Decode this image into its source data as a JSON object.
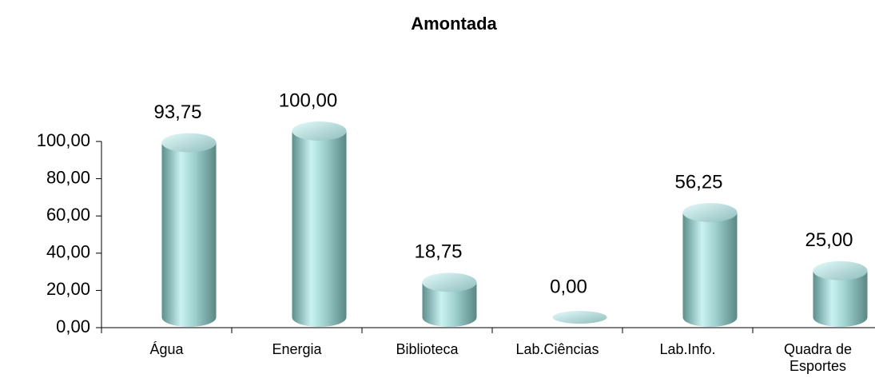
{
  "chart_data": {
    "type": "bar3d-cylinder",
    "title": "Amontada",
    "categories": [
      "Água",
      "Energia",
      "Biblioteca",
      "Lab.Ciências",
      "Lab.Info.",
      "Quadra de Esportes"
    ],
    "values": [
      93.75,
      100,
      18.75,
      0,
      56.25,
      25
    ],
    "value_labels": [
      "93,75",
      "100,00",
      "18,75",
      "0,00",
      "56,25",
      "25,00"
    ],
    "color": "#8fc4c2",
    "ylim": [
      0,
      100
    ],
    "yticks": [
      {
        "value": 0,
        "label": "0,00"
      },
      {
        "value": 20,
        "label": "20,00"
      },
      {
        "value": 40,
        "label": "40,00"
      },
      {
        "value": 60,
        "label": "60,00"
      },
      {
        "value": 80,
        "label": "80,00"
      },
      {
        "value": 100,
        "label": "100,00"
      }
    ],
    "grid": false
  }
}
